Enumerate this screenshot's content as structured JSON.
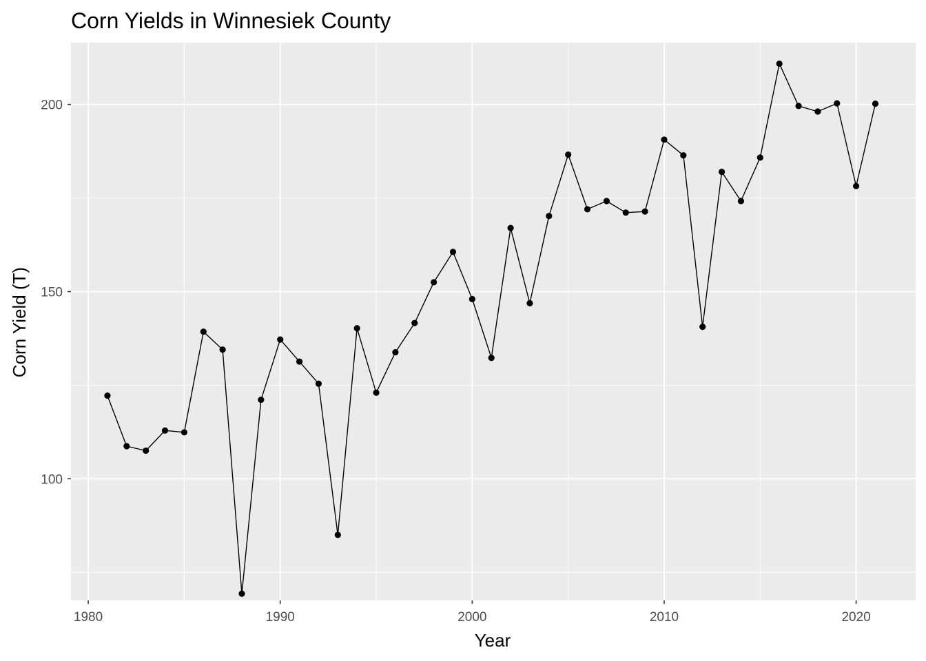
{
  "chart_data": {
    "type": "line",
    "title": "Corn Yields in Winnesiek County",
    "xlabel": "Year",
    "ylabel": "Corn Yield (T)",
    "xlim": [
      1979.1,
      2023.1
    ],
    "ylim": [
      67.5,
      216.5
    ],
    "x_ticks": [
      1980,
      1990,
      2000,
      2010,
      2020
    ],
    "y_ticks": [
      100,
      150,
      200
    ],
    "grid": true,
    "markers": true,
    "x": [
      1981,
      1982,
      1983,
      1984,
      1985,
      1986,
      1987,
      1988,
      1989,
      1990,
      1991,
      1992,
      1993,
      1994,
      1995,
      1996,
      1997,
      1998,
      1999,
      2000,
      2001,
      2002,
      2003,
      2004,
      2005,
      2006,
      2007,
      2008,
      2009,
      2010,
      2011,
      2012,
      2013,
      2014,
      2015,
      2016,
      2017,
      2018,
      2019,
      2020,
      2021
    ],
    "y": [
      122.2,
      108.7,
      107.5,
      112.9,
      112.4,
      139.3,
      134.5,
      69.3,
      121.1,
      137.2,
      131.3,
      125.4,
      85.0,
      140.2,
      123.0,
      133.8,
      141.6,
      152.5,
      160.6,
      148.0,
      132.3,
      167.0,
      146.9,
      170.2,
      186.6,
      172.0,
      174.2,
      171.1,
      171.4,
      190.6,
      186.4,
      140.6,
      182.0,
      174.2,
      185.8,
      210.9,
      199.6,
      198.1,
      200.3,
      178.2,
      200.2
    ],
    "colors": {
      "panel": "#ebebeb",
      "grid": "#ffffff",
      "line": "#000000",
      "point": "#000000"
    }
  }
}
